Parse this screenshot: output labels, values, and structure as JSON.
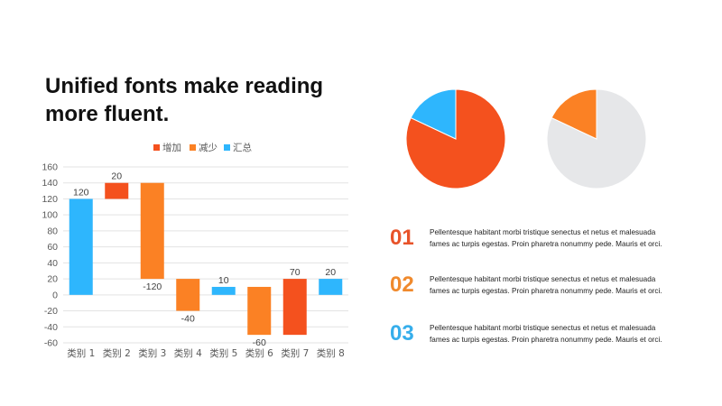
{
  "slide": {
    "title_line1": "Unified fonts make reading",
    "title_line2": "more fluent."
  },
  "chart_data": [
    {
      "type": "bar",
      "subtype": "waterfall",
      "categories": [
        "类别 1",
        "类别 2",
        "类别 3",
        "类别 4",
        "类别 5",
        "类别 6",
        "类别 7",
        "类别 8"
      ],
      "values": [
        120,
        20,
        -120,
        -40,
        10,
        -60,
        70,
        20
      ],
      "value_labels": [
        "120",
        "20",
        "-120",
        "-40",
        "10",
        "-60",
        "70",
        "20"
      ],
      "bars": [
        {
          "kind": "total",
          "base": 0,
          "top": 120
        },
        {
          "kind": "increase",
          "base": 120,
          "top": 140
        },
        {
          "kind": "decrease",
          "base": 20,
          "top": 140
        },
        {
          "kind": "decrease",
          "base": -20,
          "top": 20
        },
        {
          "kind": "total",
          "base": 0,
          "top": 10
        },
        {
          "kind": "decrease",
          "base": -50,
          "top": 10
        },
        {
          "kind": "increase",
          "base": -50,
          "top": 20
        },
        {
          "kind": "total",
          "base": 0,
          "top": 20
        }
      ],
      "legend": [
        {
          "name": "增加",
          "color": "#F4511E"
        },
        {
          "name": "减少",
          "color": "#FB8124"
        },
        {
          "name": "汇总",
          "color": "#2EB6FD"
        }
      ],
      "legend_position": "top",
      "ylim": [
        -60,
        160
      ],
      "yticks": [
        -60,
        -40,
        -20,
        0,
        20,
        40,
        60,
        80,
        100,
        120,
        140,
        160
      ],
      "grid": true,
      "xlabel": "",
      "ylabel": "",
      "title": ""
    },
    {
      "type": "pie",
      "slices": [
        {
          "value": 82,
          "color": "#F4511E"
        },
        {
          "value": 18,
          "color": "#2EB6FD"
        }
      ],
      "title": ""
    },
    {
      "type": "pie",
      "slices": [
        {
          "value": 82,
          "color": "#E6E7E9"
        },
        {
          "value": 18,
          "color": "#FB8124"
        }
      ],
      "title": ""
    }
  ],
  "items": [
    {
      "number": "01",
      "color": "#E8532A",
      "line1": "Pellentesque  habitant  morbi  tristique  senectus  et  netus  et  malesuada",
      "line2": "fames  ac  turpis  egestas.  Proin  pharetra  nonummy  pede.  Mauris  et  orci."
    },
    {
      "number": "02",
      "color": "#F08A2D",
      "line1": "Pellentesque  habitant  morbi  tristique  senectus  et  netus  et  malesuada",
      "line2": "fames  ac  turpis  egestas.  Proin  pharetra  nonummy  pede.  Mauris  et  orci."
    },
    {
      "number": "03",
      "color": "#36AEEB",
      "line1": "Pellentesque  habitant  morbi  tristique  senectus  et  netus  et  malesuada",
      "line2": "fames  ac  turpis  egestas.  Proin  pharetra  nonummy  pede.  Mauris  et  orci."
    }
  ]
}
